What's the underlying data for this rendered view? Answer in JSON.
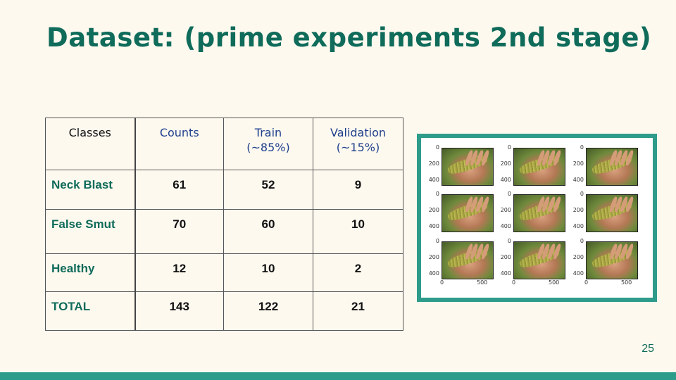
{
  "slide": {
    "title": "Dataset: (prime experiments 2nd stage)",
    "page_number": "25"
  },
  "table": {
    "headers": [
      "Classes",
      "Counts",
      "Train\n(~85%)",
      "Validation\n(~15%)"
    ],
    "rows": [
      [
        "Neck Blast",
        "61",
        "52",
        "9"
      ],
      [
        "False Smut",
        "70",
        "60",
        "10"
      ],
      [
        "Healthy",
        "12",
        "10",
        "2"
      ],
      [
        "TOTAL",
        "143",
        "122",
        "21"
      ]
    ]
  },
  "figure": {
    "grid": "3x3",
    "y_ticks": [
      "0",
      "200",
      "400"
    ],
    "x_ticks": [
      "0",
      "500"
    ]
  },
  "colors": {
    "background": "#fef9ef",
    "accent": "#0f6b5a",
    "frame": "#2e9c8a",
    "header_blue": "#1f3f8c"
  }
}
